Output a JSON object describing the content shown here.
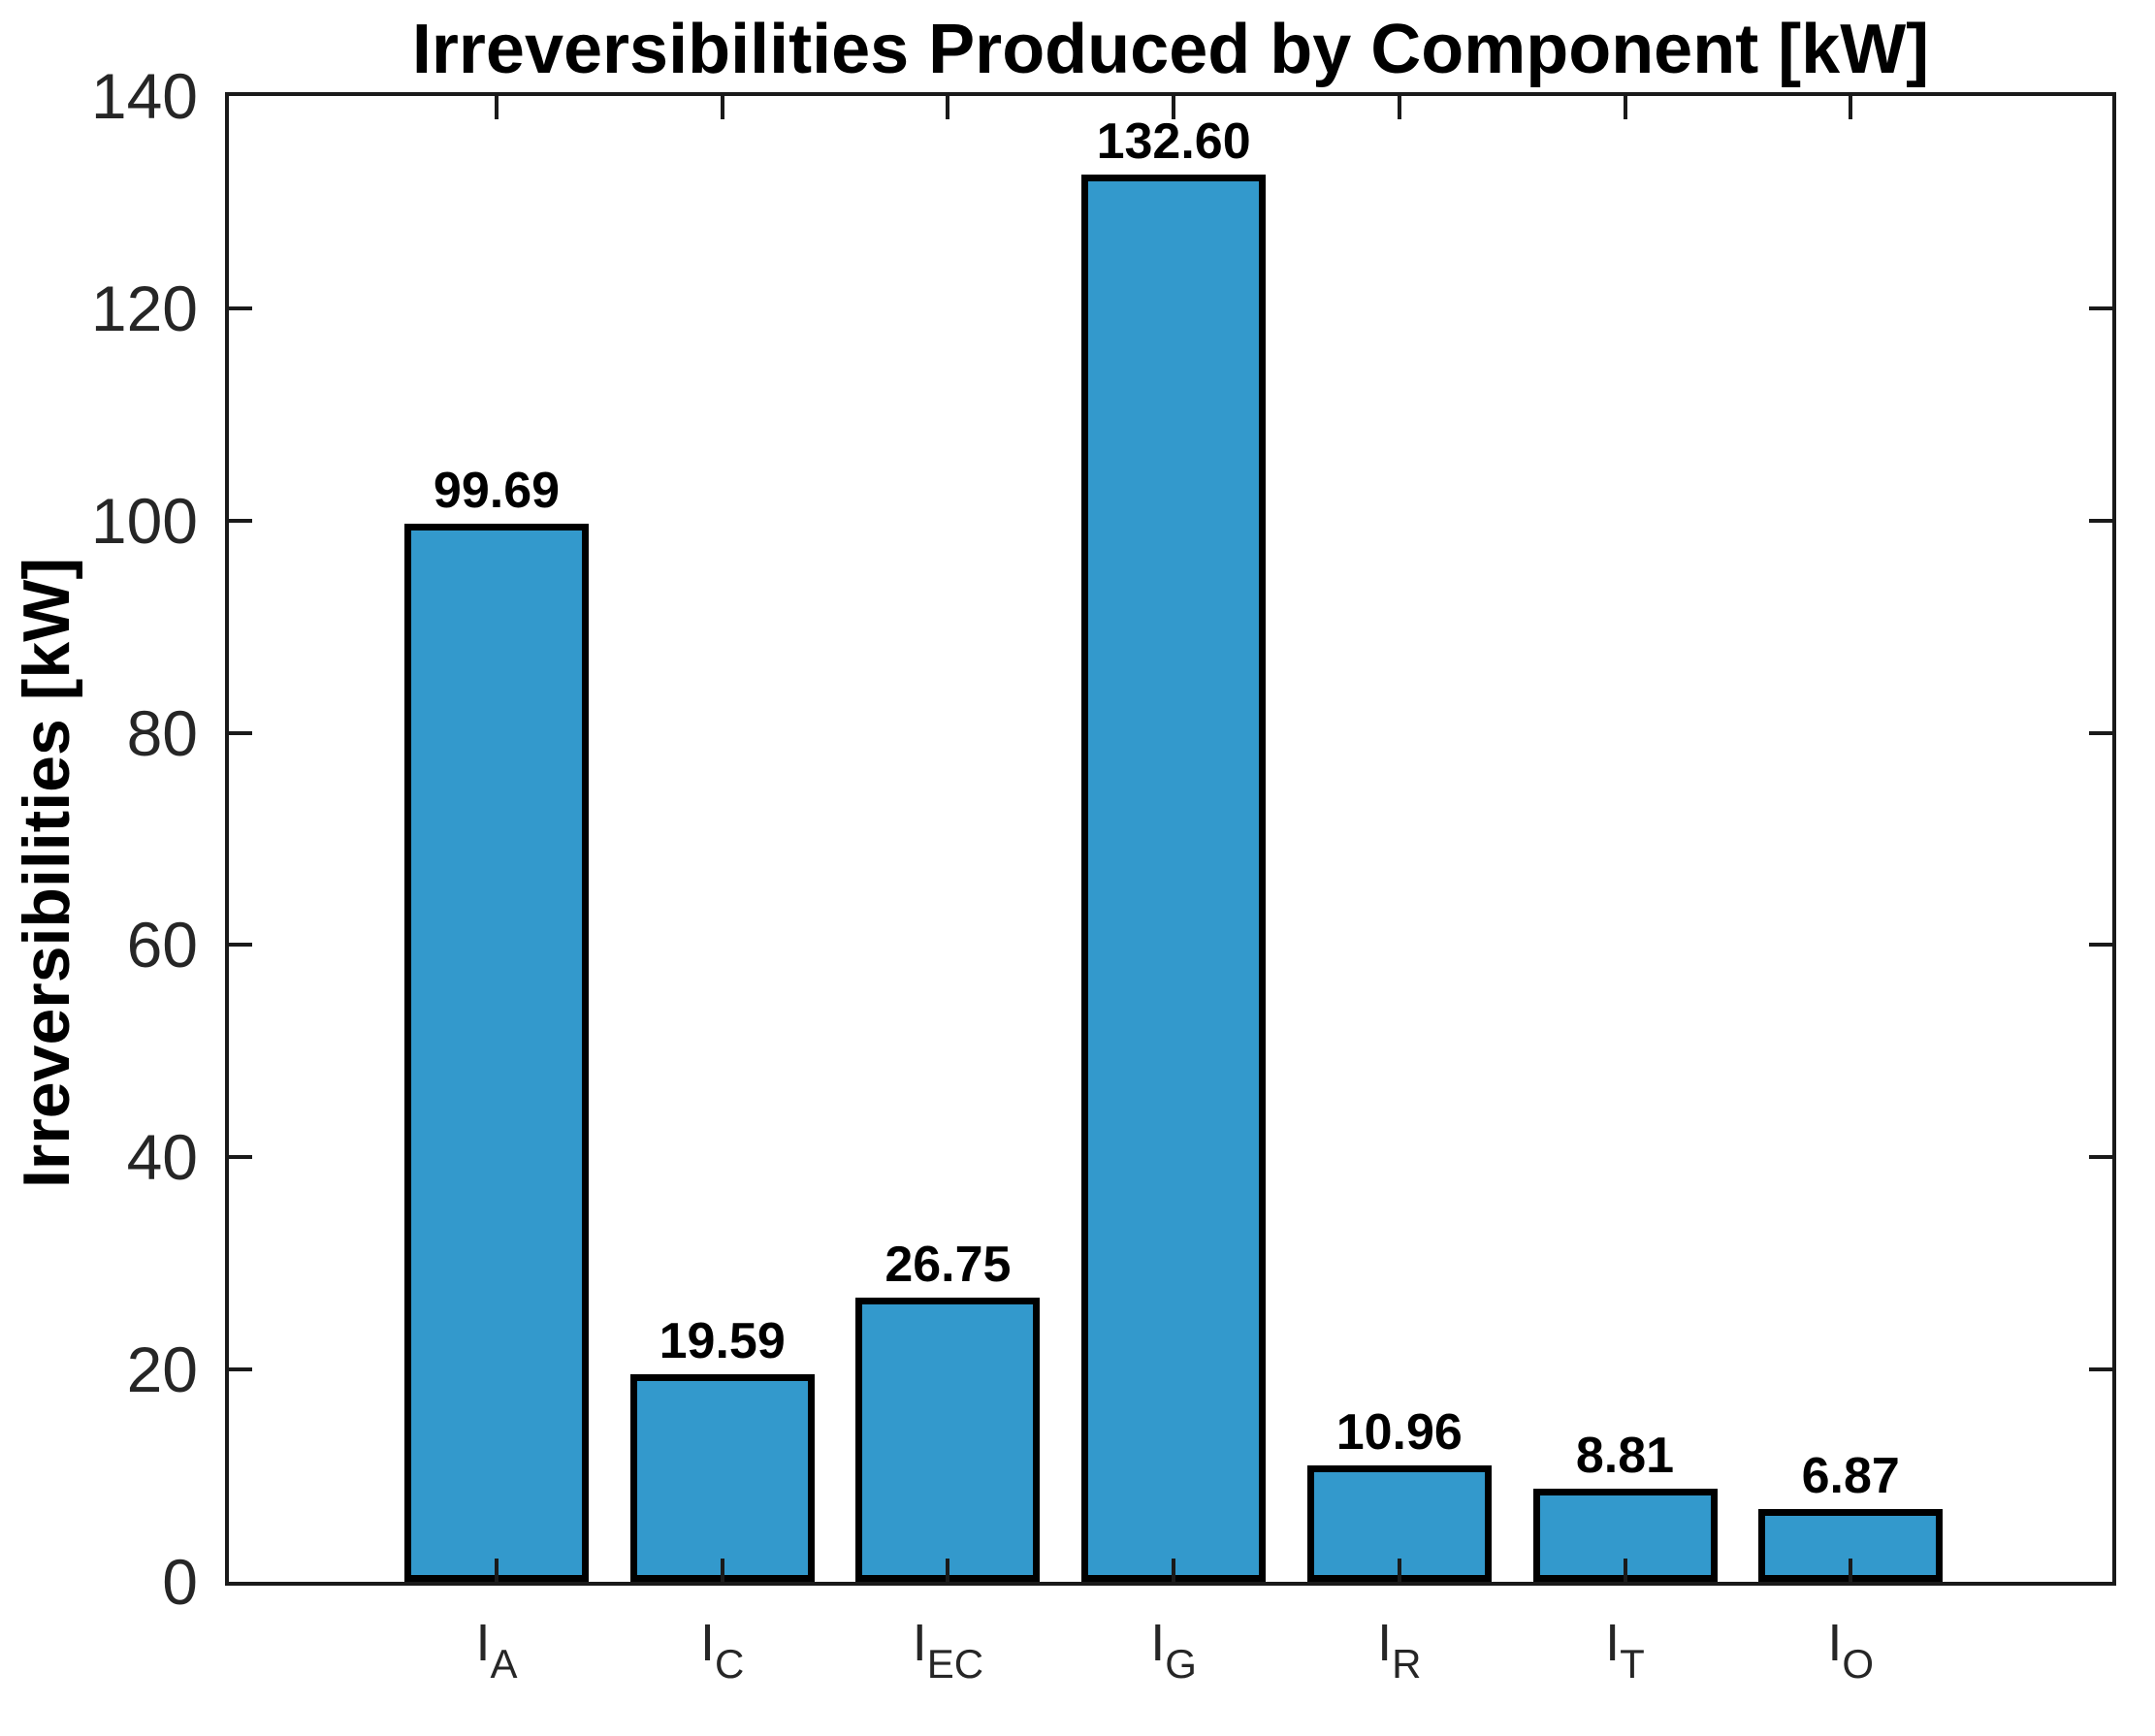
{
  "chart_data": {
    "type": "bar",
    "title": "Irreversibilities Produced by Component [kW]",
    "ylabel": "Irreversibilities [kW]",
    "xlabel": "",
    "categories": [
      "I_A",
      "I_C",
      "I_EC",
      "I_G",
      "I_R",
      "I_T",
      "I_O"
    ],
    "categories_rich": [
      {
        "base": "I",
        "sub": "A"
      },
      {
        "base": "I",
        "sub": "C"
      },
      {
        "base": "I",
        "sub": "EC"
      },
      {
        "base": "I",
        "sub": "G"
      },
      {
        "base": "I",
        "sub": "R"
      },
      {
        "base": "I",
        "sub": "T"
      },
      {
        "base": "I",
        "sub": "O"
      }
    ],
    "values": [
      99.69,
      19.59,
      26.75,
      132.6,
      10.96,
      8.81,
      6.87
    ],
    "value_labels": [
      "99.69",
      "19.59",
      "26.75",
      "132.60",
      "10.96",
      "8.81",
      "6.87"
    ],
    "ylim": [
      0,
      140
    ],
    "yticks": [
      0,
      20,
      40,
      60,
      80,
      100,
      120,
      140
    ],
    "grid": false,
    "legend": false,
    "tick_direction": "in",
    "box": true
  },
  "colors": {
    "bar_fill": "#3399CC",
    "bar_edge": "#000000",
    "axis_box": "#1A1A1A",
    "tick_label_text": "#262626",
    "title_text": "#000000",
    "background": "#FFFFFF"
  }
}
